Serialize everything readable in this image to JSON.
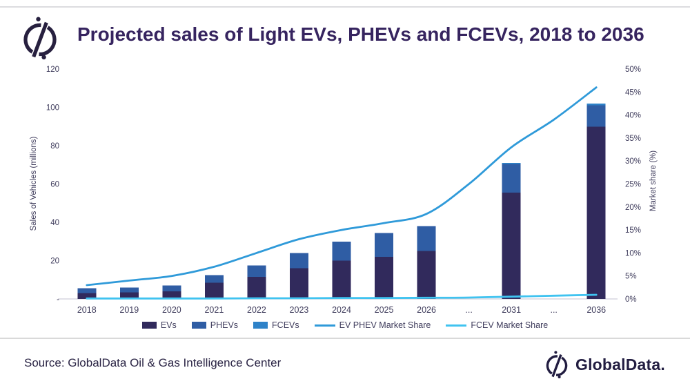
{
  "footer": {
    "source": "Source: GlobalData Oil & Gas Intelligence Center",
    "brand": "GlobalData."
  },
  "colors": {
    "ev_bar": "#312a5c",
    "phev_bar": "#2f5da4",
    "fcev_bar": "#2e82c8",
    "ev_phev_line": "#2f9ad9",
    "fcev_line": "#40c3f0",
    "title_text": "#36245f",
    "axis_text": "#3f3c5c",
    "baseline": "#cfced9"
  },
  "chart_data": {
    "type": "bar",
    "title": "Projected sales of Light EVs, PHEVs and FCEVs, 2018 to 2036",
    "categories": [
      "2018",
      "2019",
      "2020",
      "2021",
      "2022",
      "2023",
      "2024",
      "2025",
      "2026",
      "...",
      "2031",
      "...",
      "2036"
    ],
    "bar_series": [
      {
        "name": "EVs",
        "color": "#312a5c",
        "values": [
          3,
          3.5,
          4,
          8.5,
          11.5,
          16,
          20,
          22,
          25,
          null,
          55.5,
          null,
          90
        ]
      },
      {
        "name": "PHEVs",
        "color": "#2f5da4",
        "values": [
          2.5,
          2.5,
          3,
          4,
          6,
          8,
          10,
          12.5,
          13,
          null,
          15,
          null,
          11
        ]
      },
      {
        "name": "FCEVs",
        "color": "#2e82c8",
        "values": [
          0,
          0,
          0,
          0,
          0,
          0,
          0,
          0,
          0,
          null,
          0.5,
          null,
          1
        ]
      }
    ],
    "line_series": [
      {
        "name": "EV PHEV Market Share",
        "color": "#2f9ad9",
        "axis": "right",
        "values": [
          3,
          4,
          5,
          7,
          10,
          13,
          15,
          16.5,
          18.5,
          25,
          33,
          39,
          46
        ]
      },
      {
        "name": "FCEV Market Share",
        "color": "#40c3f0",
        "axis": "right",
        "values": [
          0.1,
          0.1,
          0.1,
          0.1,
          0.15,
          0.15,
          0.2,
          0.2,
          0.25,
          0.3,
          0.5,
          0.7,
          0.9
        ]
      }
    ],
    "left_axis": {
      "label": "Sales of Vehicles (millions)",
      "min": 0,
      "max": 120,
      "ticks": [
        "120",
        "100",
        "80",
        "60",
        "40",
        "20",
        "-"
      ]
    },
    "right_axis": {
      "label": "Market share (%)",
      "min": 0,
      "max": 50,
      "ticks": [
        "50%",
        "45%",
        "40%",
        "35%",
        "30%",
        "25%",
        "20%",
        "15%",
        "10%",
        "5%",
        "0%"
      ]
    },
    "grid": "off",
    "legend_position": "bottom"
  }
}
